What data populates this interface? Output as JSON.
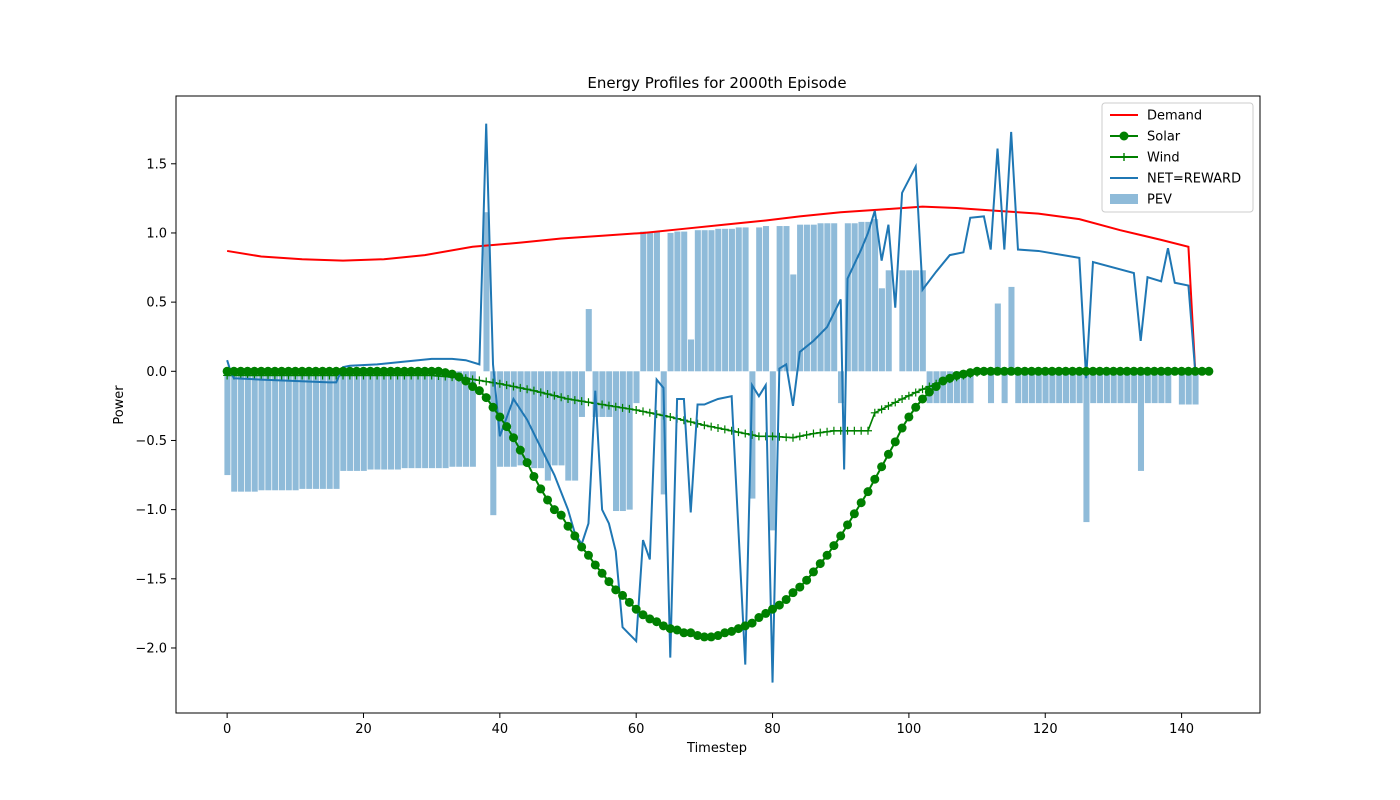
{
  "chart_data": {
    "type": "line",
    "title": "Energy Profiles for 2000th Episode",
    "xlabel": "Timestep",
    "ylabel": "Power",
    "xlim": [
      -7.5,
      151.5
    ],
    "ylim": [
      -2.47,
      1.99
    ],
    "xticks": [
      0,
      20,
      40,
      60,
      80,
      100,
      120,
      140
    ],
    "yticks": [
      -2.0,
      -1.5,
      -1.0,
      -0.5,
      0.0,
      0.5,
      1.0,
      1.5
    ],
    "xtick_labels": [
      "0",
      "20",
      "40",
      "60",
      "80",
      "100",
      "120",
      "140"
    ],
    "ytick_labels": [
      "−2.0",
      "−1.5",
      "−1.0",
      "−0.5",
      "0.0",
      "0.5",
      "1.0",
      "1.5"
    ],
    "grid": false,
    "legend_position": "top-right",
    "legend": [
      "Demand",
      "Solar",
      "Wind",
      "NET=REWARD",
      "PEV"
    ],
    "series": [
      {
        "name": "Demand",
        "kind": "line",
        "color": "#ff0000",
        "x": [
          0,
          5,
          11,
          17,
          23,
          29,
          36,
          43,
          49,
          55,
          61,
          67,
          73,
          79,
          84,
          90,
          96,
          102,
          107,
          113,
          119,
          125,
          131,
          137,
          141,
          142
        ],
        "y": [
          0.87,
          0.83,
          0.81,
          0.8,
          0.81,
          0.84,
          0.9,
          0.93,
          0.96,
          0.98,
          1.0,
          1.03,
          1.06,
          1.09,
          1.12,
          1.15,
          1.17,
          1.19,
          1.18,
          1.16,
          1.14,
          1.1,
          1.02,
          0.95,
          0.9,
          0.0
        ]
      },
      {
        "name": "Solar",
        "kind": "line-marker",
        "color": "#008000",
        "marker": "circle",
        "x_start": 0,
        "y": [
          0.0,
          0.0,
          0.0,
          0.0,
          0.0,
          0.0,
          0.0,
          0.0,
          0.0,
          0.0,
          0.0,
          0.0,
          0.0,
          0.0,
          0.0,
          0.0,
          0.0,
          0.0,
          0.0,
          0.0,
          0.0,
          0.0,
          0.0,
          0.0,
          0.0,
          0.0,
          0.0,
          0.0,
          0.0,
          0.0,
          0.0,
          0.0,
          -0.01,
          -0.02,
          -0.04,
          -0.07,
          -0.11,
          -0.14,
          -0.19,
          -0.26,
          -0.33,
          -0.4,
          -0.48,
          -0.57,
          -0.66,
          -0.76,
          -0.85,
          -0.93,
          -1.0,
          -1.04,
          -1.12,
          -1.19,
          -1.27,
          -1.33,
          -1.4,
          -1.46,
          -1.52,
          -1.58,
          -1.62,
          -1.67,
          -1.72,
          -1.76,
          -1.79,
          -1.81,
          -1.84,
          -1.86,
          -1.87,
          -1.89,
          -1.89,
          -1.91,
          -1.92,
          -1.92,
          -1.91,
          -1.89,
          -1.88,
          -1.86,
          -1.84,
          -1.82,
          -1.78,
          -1.75,
          -1.72,
          -1.69,
          -1.65,
          -1.6,
          -1.56,
          -1.51,
          -1.45,
          -1.39,
          -1.33,
          -1.26,
          -1.19,
          -1.11,
          -1.03,
          -0.95,
          -0.87,
          -0.78,
          -0.69,
          -0.6,
          -0.51,
          -0.41,
          -0.33,
          -0.26,
          -0.2,
          -0.15,
          -0.11,
          -0.07,
          -0.05,
          -0.03,
          -0.02,
          -0.01,
          0.0,
          0.0,
          0.0,
          0.0,
          0.0,
          0.0,
          0.0,
          0.0,
          0.0,
          0.0,
          0.0,
          0.0,
          0.0,
          0.0,
          0.0,
          0.0,
          0.0,
          0.0,
          0.0,
          0.0,
          0.0,
          0.0,
          0.0,
          0.0,
          0.0,
          0.0,
          0.0,
          0.0,
          0.0,
          0.0,
          0.0,
          0.0,
          0.0,
          0.0,
          0.0
        ]
      },
      {
        "name": "Wind",
        "kind": "line-marker",
        "color": "#008000",
        "marker": "plus",
        "x": [
          0,
          5,
          10,
          15,
          20,
          25,
          30,
          35,
          40,
          45,
          50,
          55,
          60,
          65,
          70,
          75,
          78,
          80,
          83,
          86,
          89,
          92,
          94,
          95,
          97,
          99,
          102,
          105,
          108,
          110,
          112,
          114,
          116,
          120,
          125,
          130,
          135,
          140,
          143
        ],
        "y": [
          -0.03,
          -0.03,
          -0.03,
          -0.03,
          -0.03,
          -0.03,
          -0.03,
          -0.05,
          -0.09,
          -0.14,
          -0.2,
          -0.24,
          -0.28,
          -0.33,
          -0.39,
          -0.44,
          -0.47,
          -0.47,
          -0.48,
          -0.45,
          -0.43,
          -0.43,
          -0.43,
          -0.3,
          -0.25,
          -0.2,
          -0.13,
          -0.07,
          -0.03,
          -0.01,
          0.0,
          0.0,
          0.0,
          0.0,
          0.0,
          0.0,
          0.0,
          0.0,
          0.0
        ]
      },
      {
        "name": "NET=REWARD",
        "kind": "line",
        "color": "#1f77b4",
        "x": [
          0,
          0.5,
          1,
          5,
          10,
          15,
          16,
          17,
          18,
          22,
          26,
          30,
          33,
          35,
          37,
          38,
          39,
          40,
          42,
          44,
          46,
          48,
          50,
          51,
          52,
          53,
          54,
          55,
          56,
          57,
          58,
          59,
          60,
          61,
          62,
          63,
          64,
          65,
          66,
          67,
          68,
          69,
          70,
          71,
          72,
          74,
          76,
          77,
          78,
          79,
          80,
          81,
          82,
          83,
          84,
          86,
          88,
          90,
          90.5,
          91,
          93,
          94,
          95,
          96,
          97,
          98,
          99,
          101,
          102,
          104,
          106,
          108,
          109,
          111,
          112,
          113,
          114,
          115,
          116,
          119,
          125,
          126,
          127,
          133,
          134,
          135,
          137,
          138,
          139,
          141,
          142
        ],
        "y": [
          0.08,
          0.0,
          -0.05,
          -0.06,
          -0.07,
          -0.08,
          -0.08,
          0.03,
          0.04,
          0.05,
          0.07,
          0.09,
          0.09,
          0.08,
          0.05,
          1.79,
          0.05,
          -0.47,
          -0.2,
          -0.35,
          -0.55,
          -0.75,
          -1.0,
          -1.17,
          -1.25,
          -1.1,
          -0.14,
          -1.0,
          -1.1,
          -1.3,
          -1.85,
          -1.9,
          -1.95,
          -1.22,
          -1.36,
          -0.06,
          -0.12,
          -2.07,
          -0.2,
          -0.2,
          -1.02,
          -0.24,
          -0.24,
          -0.22,
          -0.2,
          -0.18,
          -2.12,
          -0.1,
          -0.18,
          -0.1,
          -2.25,
          0.02,
          0.05,
          -0.25,
          0.14,
          0.22,
          0.32,
          0.52,
          -0.71,
          0.67,
          0.88,
          1.0,
          1.16,
          0.8,
          1.06,
          0.46,
          1.29,
          1.48,
          0.59,
          0.72,
          0.84,
          0.86,
          1.11,
          1.12,
          0.88,
          1.61,
          0.88,
          1.73,
          0.88,
          0.87,
          0.82,
          -0.05,
          0.79,
          0.71,
          0.22,
          0.68,
          0.65,
          0.89,
          0.64,
          0.62,
          0.0
        ]
      },
      {
        "name": "PEV",
        "kind": "bar",
        "color": "#1f77b4",
        "opacity": 0.5,
        "x_start": 0,
        "y": [
          -0.75,
          -0.87,
          -0.87,
          -0.87,
          -0.87,
          -0.86,
          -0.86,
          -0.86,
          -0.86,
          -0.86,
          -0.86,
          -0.85,
          -0.85,
          -0.85,
          -0.85,
          -0.85,
          -0.85,
          -0.72,
          -0.72,
          -0.72,
          -0.72,
          -0.71,
          -0.71,
          -0.71,
          -0.71,
          -0.71,
          -0.7,
          -0.7,
          -0.7,
          -0.7,
          -0.7,
          -0.7,
          -0.7,
          -0.69,
          -0.69,
          -0.69,
          -0.69,
          0.0,
          1.15,
          -1.04,
          -0.69,
          -0.69,
          -0.69,
          -0.68,
          -0.68,
          -0.7,
          -0.7,
          -0.79,
          -0.68,
          -0.68,
          -0.79,
          -0.79,
          -0.33,
          0.45,
          -0.33,
          -0.33,
          -0.33,
          -1.01,
          -1.01,
          -1.0,
          -0.23,
          1.01,
          1.01,
          1.01,
          -0.89,
          1.0,
          1.01,
          1.01,
          0.23,
          1.02,
          1.02,
          1.02,
          1.03,
          1.03,
          1.03,
          1.04,
          1.04,
          -0.92,
          1.04,
          1.05,
          -1.15,
          1.05,
          1.05,
          0.7,
          1.06,
          1.06,
          1.06,
          1.07,
          1.07,
          1.07,
          -0.23,
          1.07,
          1.07,
          1.08,
          1.08,
          1.1,
          0.6,
          0.73,
          0.0,
          0.73,
          0.73,
          0.73,
          0.73,
          -0.23,
          -0.23,
          -0.23,
          -0.23,
          -0.23,
          -0.23,
          -0.23,
          0.0,
          0.0,
          -0.23,
          0.49,
          -0.23,
          0.61,
          -0.23,
          -0.23,
          -0.23,
          -0.23,
          -0.23,
          -0.23,
          -0.23,
          -0.23,
          -0.23,
          -0.23,
          -1.09,
          -0.23,
          -0.23,
          -0.23,
          -0.23,
          -0.23,
          -0.23,
          -0.23,
          -0.72,
          -0.23,
          -0.23,
          -0.23,
          -0.23,
          0.0,
          -0.24,
          -0.24,
          -0.24,
          0.0,
          0.0,
          0.0
        ]
      }
    ]
  }
}
